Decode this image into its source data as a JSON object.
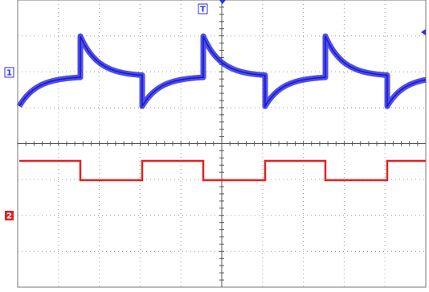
{
  "markers": {
    "channel1": "1",
    "channel2": "2",
    "trigger": "T"
  }
}
